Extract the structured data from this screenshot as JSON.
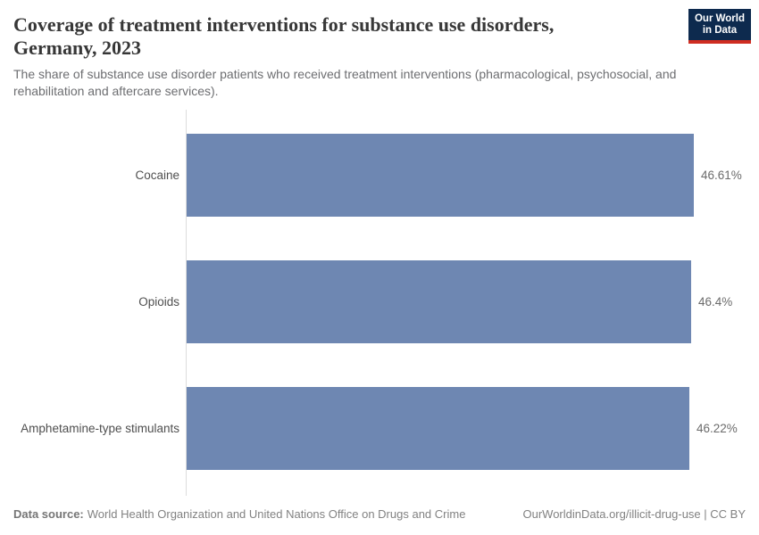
{
  "header": {
    "title_lines": [
      "Coverage of treatment interventions for substance use disorders,",
      "Germany, 2023"
    ],
    "subtitle": "The share of substance use disorder patients who received treatment interventions (pharmacological, psychosocial, and rehabilitation and aftercare services).",
    "logo": {
      "line1": "Our World",
      "line2": "in Data",
      "bg_color": "#0d2a4e",
      "accent_color": "#cf2d21"
    }
  },
  "chart_data": {
    "type": "bar",
    "orientation": "horizontal",
    "title": "Coverage of treatment interventions for substance use disorders, Germany, 2023",
    "categories": [
      "Cocaine",
      "Opioids",
      "Amphetamine-type stimulants"
    ],
    "values": [
      46.61,
      46.4,
      46.22
    ],
    "value_labels": [
      "46.61%",
      "46.4%",
      "46.22%"
    ],
    "unit": "%",
    "xlim": [
      0,
      46.61
    ],
    "grid": false,
    "legend": "none",
    "bar_color": "#6e87b2",
    "axis_line_color": "#dcdcdc"
  },
  "footer": {
    "datasource_label": "Data source:",
    "datasource_text": "World Health Organization and United Nations Office on Drugs and Crime",
    "attribution": "OurWorldinData.org/illicit-drug-use | CC BY"
  }
}
